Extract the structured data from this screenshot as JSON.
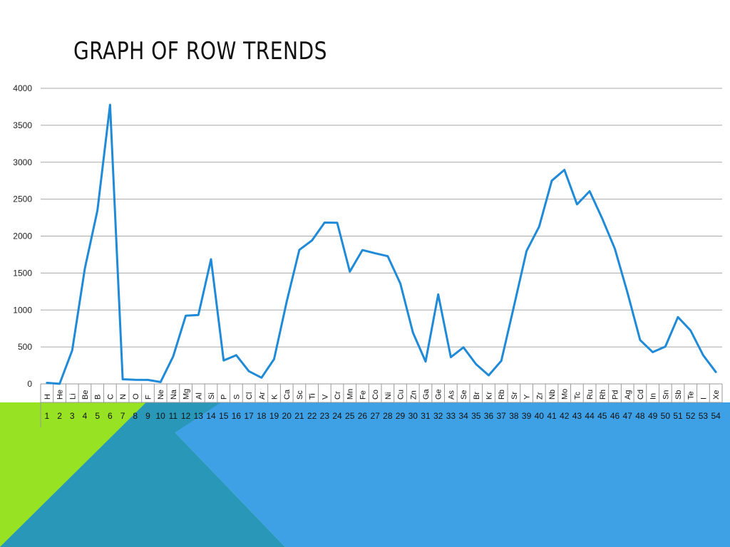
{
  "slide": {
    "title": "GRAPH OF ROW TRENDS",
    "colors": {
      "green": "#98e224",
      "blue": "#3ea1e6",
      "overlap": "#2997b8",
      "line": "#1f8ad7"
    }
  },
  "chart_data": {
    "type": "line",
    "title": "",
    "xlabel": "",
    "ylabel": "",
    "ylim": [
      0,
      4000
    ],
    "yticks": [
      0,
      500,
      1000,
      1500,
      2000,
      2500,
      3000,
      3500,
      4000
    ],
    "grid": true,
    "categories": [
      "H",
      "He",
      "Li",
      "Be",
      "B",
      "C",
      "N",
      "O",
      "F",
      "Ne",
      "Na",
      "Mg",
      "Al",
      "Si",
      "P",
      "S",
      "Cl",
      "Ar",
      "K",
      "Ca",
      "Sc",
      "Ti",
      "V",
      "Cr",
      "Mn",
      "Fe",
      "Co",
      "Ni",
      "Cu",
      "Zn",
      "Ga",
      "Ge",
      "As",
      "Se",
      "Br",
      "Kr",
      "Rb",
      "Sr",
      "Y",
      "Zr",
      "Nb",
      "Mo",
      "Tc",
      "Ru",
      "Rh",
      "Pd",
      "Ag",
      "Cd",
      "In",
      "Sn",
      "Sb",
      "Te",
      "I",
      "Xe"
    ],
    "numbers": [
      "1",
      "2",
      "3",
      "4",
      "5",
      "6",
      "7",
      "8",
      "9",
      "10",
      "11",
      "12",
      "13",
      "14",
      "15",
      "16",
      "17",
      "18",
      "19",
      "20",
      "21",
      "22",
      "23",
      "24",
      "25",
      "26",
      "27",
      "28",
      "29",
      "30",
      "31",
      "32",
      "33",
      "34",
      "35",
      "36",
      "37",
      "38",
      "39",
      "40",
      "41",
      "42",
      "43",
      "44",
      "45",
      "46",
      "47",
      "48",
      "49",
      "50",
      "51",
      "52",
      "53",
      "54"
    ],
    "series": [
      {
        "values": [
          14,
          1,
          454,
          1560,
          2349,
          3777,
          63,
          55,
          54,
          25,
          371,
          923,
          933,
          1687,
          317,
          388,
          172,
          84,
          336,
          1115,
          1814,
          1941,
          2183,
          2180,
          1519,
          1811,
          1768,
          1728,
          1358,
          693,
          303,
          1211,
          361,
          494,
          266,
          116,
          312,
          1050,
          1799,
          2128,
          2750,
          2896,
          2430,
          2607,
          2237,
          1828,
          1235,
          594,
          430,
          505,
          904,
          723,
          387,
          161
        ],
        "color": "#1f8ad7"
      }
    ]
  }
}
